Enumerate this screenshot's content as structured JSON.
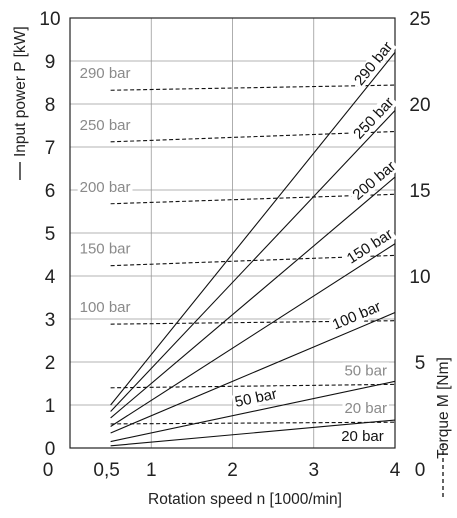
{
  "chart_data": {
    "type": "line",
    "xlabel": "Rotation speed n [1000/min]",
    "ylabel_left": "Input power P [kW]",
    "ylabel_right": "Torque M [Nm]",
    "xlim": [
      0,
      4
    ],
    "ylim_left": [
      0,
      10
    ],
    "ylim_right": [
      0,
      25
    ],
    "x_ticks": [
      "0",
      "0,5",
      "1",
      "2",
      "3",
      "4"
    ],
    "y_left_ticks": [
      "0",
      "1",
      "2",
      "3",
      "4",
      "5",
      "6",
      "7",
      "8",
      "9",
      "10"
    ],
    "y_right_ticks": [
      "0",
      "5",
      "10",
      "15",
      "20",
      "25"
    ],
    "grid": true,
    "power_series": [
      {
        "name": "290 bar",
        "x": [
          0.5,
          4
        ],
        "y": [
          1.0,
          9.2
        ]
      },
      {
        "name": "250 bar",
        "x": [
          0.5,
          4
        ],
        "y": [
          0.85,
          7.85
        ]
      },
      {
        "name": "200 bar",
        "x": [
          0.5,
          4
        ],
        "y": [
          0.7,
          6.3
        ]
      },
      {
        "name": "150 bar",
        "x": [
          0.5,
          4
        ],
        "y": [
          0.5,
          4.75
        ]
      },
      {
        "name": "100 bar",
        "x": [
          0.5,
          4
        ],
        "y": [
          0.35,
          3.15
        ]
      },
      {
        "name": "50 bar",
        "x": [
          0.5,
          4
        ],
        "y": [
          0.15,
          1.55
        ]
      },
      {
        "name": "20 bar",
        "x": [
          0.5,
          4
        ],
        "y": [
          0.05,
          0.65
        ]
      }
    ],
    "torque_series": [
      {
        "name": "290 bar",
        "x": [
          0.5,
          4
        ],
        "y": [
          20.8,
          21.1
        ]
      },
      {
        "name": "250 bar",
        "x": [
          0.5,
          4
        ],
        "y": [
          17.8,
          18.4
        ]
      },
      {
        "name": "200 bar",
        "x": [
          0.5,
          4
        ],
        "y": [
          14.2,
          14.75
        ]
      },
      {
        "name": "150 bar",
        "x": [
          0.5,
          4
        ],
        "y": [
          10.6,
          11.2
        ]
      },
      {
        "name": "100 bar",
        "x": [
          0.5,
          4
        ],
        "y": [
          7.2,
          7.4
        ]
      },
      {
        "name": "50 bar",
        "x": [
          0.5,
          4
        ],
        "y": [
          3.5,
          3.7
        ]
      },
      {
        "name": "20 bar",
        "x": [
          0.5,
          4
        ],
        "y": [
          1.4,
          1.5
        ]
      }
    ],
    "power_label_color": "#111111",
    "torque_label_color": "#8a8a8a",
    "line_color": "#111111"
  }
}
